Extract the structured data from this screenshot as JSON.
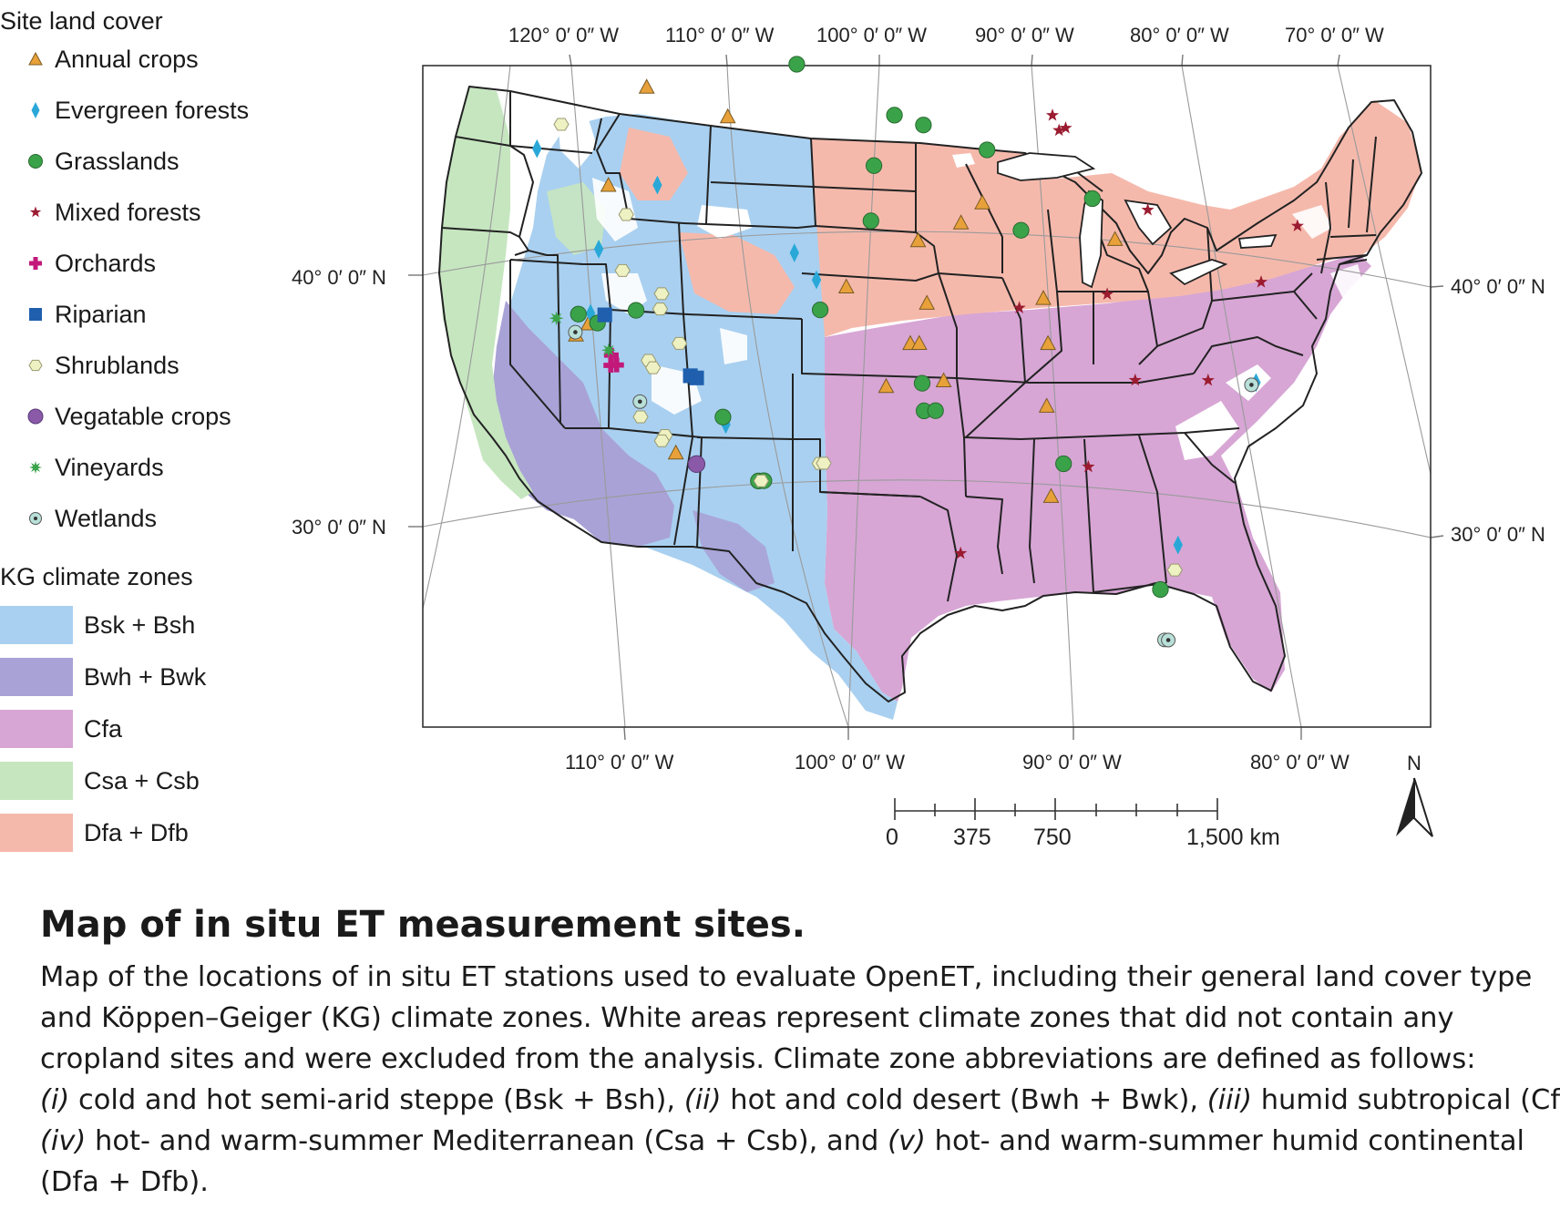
{
  "legend": {
    "land_cover_title": "Site land cover",
    "land_cover": [
      {
        "name": "annual-crops",
        "label": "Annual crops",
        "symbol": "triangle",
        "color": "#e8a13a"
      },
      {
        "name": "evergreen-forests",
        "label": "Evergreen forests",
        "symbol": "diamond",
        "color": "#29a8d8"
      },
      {
        "name": "grasslands",
        "label": "Grasslands",
        "symbol": "circle",
        "color": "#3aa34a"
      },
      {
        "name": "mixed-forests",
        "label": "Mixed forests",
        "symbol": "star",
        "color": "#9b1b30"
      },
      {
        "name": "orchards",
        "label": "Orchards",
        "symbol": "cross",
        "color": "#c2187a"
      },
      {
        "name": "riparian",
        "label": "Riparian",
        "symbol": "square",
        "color": "#1f5fae"
      },
      {
        "name": "shrublands",
        "label": "Shrublands",
        "symbol": "hexagon",
        "color": "#eef1c2"
      },
      {
        "name": "vegetable-crops",
        "label": "Vegatable crops",
        "symbol": "octagon",
        "color": "#8a5aa8"
      },
      {
        "name": "vineyards",
        "label": "Vineyards",
        "symbol": "burst",
        "color": "#3aa34a"
      },
      {
        "name": "wetlands",
        "label": "Wetlands",
        "symbol": "ring",
        "color": "#b8e0d8"
      }
    ],
    "climate_title": "KG climate zones",
    "climate_zones": [
      {
        "name": "bsk-bsh",
        "label": "Bsk + Bsh",
        "color": "#a9d0f0"
      },
      {
        "name": "bwh-bwk",
        "label": "Bwh + Bwk",
        "color": "#a9a2d6"
      },
      {
        "name": "cfa",
        "label": "Cfa",
        "color": "#d7a6d5"
      },
      {
        "name": "csa-csb",
        "label": "Csa + Csb",
        "color": "#c6e6c0"
      },
      {
        "name": "dfa-dfb",
        "label": "Dfa + Dfb",
        "color": "#f5b9ac"
      }
    ]
  },
  "graticule": {
    "top": [
      "120° 0′ 0″ W",
      "110° 0′ 0″ W",
      "100° 0′ 0″ W",
      "90° 0′ 0″ W",
      "80° 0′ 0″ W",
      "70° 0′ 0″ W"
    ],
    "bottom": [
      "110° 0′ 0″ W",
      "100° 0′ 0″ W",
      "90° 0′ 0″ W",
      "80° 0′ 0″ W"
    ],
    "left": [
      "40° 0′ 0″ N",
      "30° 0′ 0″ N"
    ],
    "right": [
      "40° 0′ 0″ N",
      "30° 0′ 0″ N"
    ]
  },
  "north_arrow": "N",
  "scale_bar": {
    "labels": [
      "0",
      "375",
      "750",
      "1,500 km"
    ]
  },
  "caption": {
    "title": "Map of in situ ET measurement sites.",
    "lines": [
      [
        {
          "t": "Map of the locations of in situ ET stations used to evaluate OpenET, including their general land cover type",
          "i": false
        }
      ],
      [
        {
          "t": "and Köppen–Geiger (KG) climate zones. White areas represent climate zones that did not contain any",
          "i": false
        }
      ],
      [
        {
          "t": "cropland sites and were excluded from the analysis. Climate zone abbreviations are defined as follows:",
          "i": false
        }
      ],
      [
        {
          "t": "(i)",
          "i": true
        },
        {
          "t": " cold and hot semi-arid steppe (Bsk + Bsh), ",
          "i": false
        },
        {
          "t": "(ii)",
          "i": true
        },
        {
          "t": " hot and cold desert (Bwh + Bwk), ",
          "i": false
        },
        {
          "t": "(iii)",
          "i": true
        },
        {
          "t": " humid subtropical (Cfa),",
          "i": false
        }
      ],
      [
        {
          "t": "(iv)",
          "i": true
        },
        {
          "t": " hot- and warm-summer Mediterranean (Csa + Csb), and ",
          "i": false
        },
        {
          "t": "(v)",
          "i": true
        },
        {
          "t": " hot- and warm-summer humid continental",
          "i": false
        }
      ],
      [
        {
          "t": "(Dfa + Dfb).",
          "i": false
        }
      ]
    ]
  },
  "sites": [
    {
      "type": "annual-crops",
      "lon": -114.0,
      "lat": 47.8
    },
    {
      "type": "annual-crops",
      "lon": -109.5,
      "lat": 46.5
    },
    {
      "type": "annual-crops",
      "lon": -117.5,
      "lat": 44.0
    },
    {
      "type": "annual-crops",
      "lon": -120.8,
      "lat": 38.6
    },
    {
      "type": "annual-crops",
      "lon": -121.8,
      "lat": 38.2
    },
    {
      "type": "annual-crops",
      "lon": -116.9,
      "lat": 33.3
    },
    {
      "type": "annual-crops",
      "lon": -103.5,
      "lat": 39.6
    },
    {
      "type": "annual-crops",
      "lon": -101.5,
      "lat": 35.6
    },
    {
      "type": "annual-crops",
      "lon": -98.6,
      "lat": 41.4
    },
    {
      "type": "annual-crops",
      "lon": -98.3,
      "lat": 38.9
    },
    {
      "type": "annual-crops",
      "lon": -95.8,
      "lat": 42.1
    },
    {
      "type": "annual-crops",
      "lon": -94.4,
      "lat": 42.9
    },
    {
      "type": "annual-crops",
      "lon": -99.6,
      "lat": 37.3
    },
    {
      "type": "annual-crops",
      "lon": -99.0,
      "lat": 37.3
    },
    {
      "type": "annual-crops",
      "lon": -97.5,
      "lat": 35.8
    },
    {
      "type": "annual-crops",
      "lon": -90.6,
      "lat": 39.1
    },
    {
      "type": "annual-crops",
      "lon": -90.3,
      "lat": 37.3
    },
    {
      "type": "annual-crops",
      "lon": -90.4,
      "lat": 34.8
    },
    {
      "type": "annual-crops",
      "lon": -90.1,
      "lat": 31.2
    },
    {
      "type": "annual-crops",
      "lon": -86.0,
      "lat": 41.5
    },
    {
      "type": "evergreen-forests",
      "lon": -121.3,
      "lat": 45.6
    },
    {
      "type": "evergreen-forests",
      "lon": -114.5,
      "lat": 43.9
    },
    {
      "type": "evergreen-forests",
      "lon": -119.0,
      "lat": 41.5
    },
    {
      "type": "evergreen-forests",
      "lon": -106.6,
      "lat": 41.0
    },
    {
      "type": "evergreen-forests",
      "lon": -105.4,
      "lat": 39.9
    },
    {
      "type": "evergreen-forests",
      "lon": -120.5,
      "lat": 39.0
    },
    {
      "type": "evergreen-forests",
      "lon": -113.0,
      "lat": 34.3
    },
    {
      "type": "evergreen-forests",
      "lon": -80.5,
      "lat": 29.4
    },
    {
      "type": "evergreen-forests",
      "lon": -76.0,
      "lat": 36.0
    },
    {
      "type": "grasslands",
      "lon": -105.0,
      "lat": 48.5
    },
    {
      "type": "grasslands",
      "lon": -99.5,
      "lat": 46.4
    },
    {
      "type": "grasslands",
      "lon": -97.8,
      "lat": 46.0
    },
    {
      "type": "grasslands",
      "lon": -101.0,
      "lat": 44.4
    },
    {
      "type": "grasslands",
      "lon": -94.0,
      "lat": 45.0
    },
    {
      "type": "grasslands",
      "lon": -101.5,
      "lat": 42.2
    },
    {
      "type": "grasslands",
      "lon": -121.3,
      "lat": 39.0
    },
    {
      "type": "grasslands",
      "lon": -120.2,
      "lat": 38.6
    },
    {
      "type": "grasslands",
      "lon": -117.5,
      "lat": 39.0
    },
    {
      "type": "grasslands",
      "lon": -105.4,
      "lat": 38.7
    },
    {
      "type": "grasslands",
      "lon": -113.1,
      "lat": 34.6
    },
    {
      "type": "grasslands",
      "lon": -99.0,
      "lat": 35.7
    },
    {
      "type": "grasslands",
      "lon": -99.0,
      "lat": 34.6
    },
    {
      "type": "grasslands",
      "lon": -98.2,
      "lat": 34.6
    },
    {
      "type": "grasslands",
      "lon": -92.0,
      "lat": 41.8
    },
    {
      "type": "grasslands",
      "lon": -87.5,
      "lat": 43.1
    },
    {
      "type": "grasslands",
      "lon": -111.4,
      "lat": 32.0
    },
    {
      "type": "grasslands",
      "lon": -111.0,
      "lat": 32.0
    },
    {
      "type": "grasslands",
      "lon": -89.2,
      "lat": 32.5
    },
    {
      "type": "grasslands",
      "lon": -81.6,
      "lat": 27.6
    },
    {
      "type": "mixed-forests",
      "lon": -90.0,
      "lat": 46.4
    },
    {
      "type": "mixed-forests",
      "lon": -89.6,
      "lat": 45.8
    },
    {
      "type": "mixed-forests",
      "lon": -89.2,
      "lat": 45.9
    },
    {
      "type": "mixed-forests",
      "lon": -92.2,
      "lat": 38.7
    },
    {
      "type": "mixed-forests",
      "lon": -86.4,
      "lat": 39.3
    },
    {
      "type": "mixed-forests",
      "lon": -84.3,
      "lat": 35.9
    },
    {
      "type": "mixed-forests",
      "lon": -79.3,
      "lat": 36.0
    },
    {
      "type": "mixed-forests",
      "lon": -87.4,
      "lat": 32.4
    },
    {
      "type": "mixed-forests",
      "lon": -97.0,
      "lat": 28.9
    },
    {
      "type": "mixed-forests",
      "lon": -84.0,
      "lat": 42.7
    },
    {
      "type": "mixed-forests",
      "lon": -76.4,
      "lat": 40.0
    },
    {
      "type": "mixed-forests",
      "lon": -74.5,
      "lat": 42.3
    },
    {
      "type": "orchards",
      "lon": -120.0,
      "lat": 36.9
    },
    {
      "type": "orchards",
      "lon": -119.6,
      "lat": 36.9
    },
    {
      "type": "orchards",
      "lon": -119.8,
      "lat": 37.3
    },
    {
      "type": "riparian",
      "lon": -119.6,
      "lat": 38.9
    },
    {
      "type": "riparian",
      "lon": -114.8,
      "lat": 36.3
    },
    {
      "type": "riparian",
      "lon": -114.4,
      "lat": 36.2
    },
    {
      "type": "shrublands",
      "lon": -119.5,
      "lat": 46.5
    },
    {
      "type": "shrublands",
      "lon": -116.8,
      "lat": 42.8
    },
    {
      "type": "shrublands",
      "lon": -117.8,
      "lat": 40.6
    },
    {
      "type": "shrublands",
      "lon": -115.6,
      "lat": 39.6
    },
    {
      "type": "shrublands",
      "lon": -115.9,
      "lat": 39.0
    },
    {
      "type": "shrublands",
      "lon": -115.1,
      "lat": 37.6
    },
    {
      "type": "shrublands",
      "lon": -117.4,
      "lat": 37.0
    },
    {
      "type": "shrublands",
      "lon": -117.2,
      "lat": 36.7
    },
    {
      "type": "shrublands",
      "lon": -118.8,
      "lat": 34.8
    },
    {
      "type": "shrublands",
      "lon": -117.4,
      "lat": 34.0
    },
    {
      "type": "shrublands",
      "lon": -117.7,
      "lat": 33.8
    },
    {
      "type": "shrublands",
      "lon": -111.2,
      "lat": 32.0
    },
    {
      "type": "shrublands",
      "lon": -106.8,
      "lat": 32.6
    },
    {
      "type": "shrublands",
      "lon": -106.5,
      "lat": 32.6
    },
    {
      "type": "shrublands",
      "lon": -80.6,
      "lat": 28.4
    },
    {
      "type": "vegetable-crops",
      "lon": -115.6,
      "lat": 32.8
    },
    {
      "type": "vineyards",
      "lon": -122.8,
      "lat": 38.9
    },
    {
      "type": "vineyards",
      "lon": -119.9,
      "lat": 37.5
    },
    {
      "type": "wetlands",
      "lon": -121.8,
      "lat": 38.3
    },
    {
      "type": "wetlands",
      "lon": -118.6,
      "lat": 35.4
    },
    {
      "type": "wetlands",
      "lon": -76.3,
      "lat": 35.9
    },
    {
      "type": "wetlands",
      "lon": -81.0,
      "lat": 25.6
    },
    {
      "type": "wetlands",
      "lon": -80.7,
      "lat": 25.6
    }
  ]
}
